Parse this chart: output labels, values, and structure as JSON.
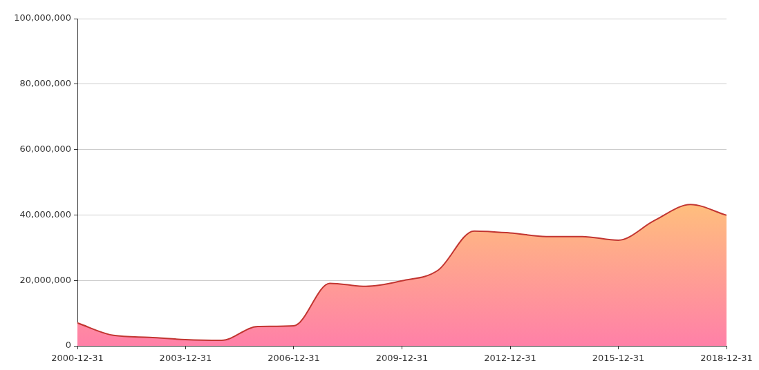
{
  "chart_data": {
    "type": "area",
    "x": [
      "2000-12-31",
      "2001-12-31",
      "2002-12-31",
      "2003-12-31",
      "2004-12-31",
      "2005-12-31",
      "2006-12-31",
      "2007-12-31",
      "2008-12-31",
      "2009-12-31",
      "2010-12-31",
      "2011-12-31",
      "2012-12-31",
      "2013-12-31",
      "2014-12-31",
      "2015-12-31",
      "2016-12-31",
      "2017-12-31",
      "2018-12-31"
    ],
    "series": [
      {
        "color": "#c23531",
        "values": [
          7000000,
          3200000,
          2600000,
          1900000,
          1700000,
          5900000,
          6100000,
          19100000,
          18200000,
          19900000,
          23100000,
          35100000,
          34500000,
          33400000,
          33400000,
          32300000,
          38300000,
          43200000,
          39900000
        ]
      }
    ],
    "xlim": [
      "2000-12-31",
      "2018-12-31"
    ],
    "xticks": [
      "2000-12-31",
      "2003-12-31",
      "2006-12-31",
      "2009-12-31",
      "2012-12-31",
      "2015-12-31",
      "2018-12-31"
    ],
    "ylim": [
      0,
      100000000
    ],
    "yticks": [
      0,
      {
        "value": 20000000,
        "label": "20,000,000"
      },
      {
        "value": 40000000,
        "label": "40,000,000"
      },
      {
        "value": 60000000,
        "label": "60,000,000"
      },
      {
        "value": 80000000,
        "label": "80,000,000"
      },
      {
        "value": 100000000,
        "label": "100,000,000"
      }
    ],
    "grid": "y",
    "legend": false
  }
}
